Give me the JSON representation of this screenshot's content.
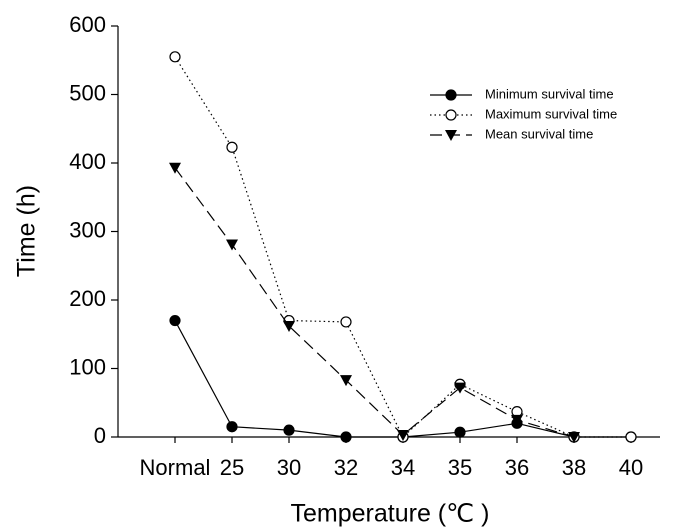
{
  "chart_data": {
    "type": "line",
    "x_label": "Temperature (℃ )",
    "y_label": "Time (h)",
    "categories": [
      "Normal",
      "25",
      "30",
      "32",
      "34",
      "35",
      "36",
      "38",
      "40"
    ],
    "series": [
      {
        "name": "Minimum survival time",
        "color": "#000000",
        "linestyle": "solid",
        "marker": "circle-filled",
        "values": [
          170,
          15,
          10,
          0,
          0,
          7,
          20,
          0,
          0
        ]
      },
      {
        "name": "Maximum survival time",
        "color": "#000000",
        "linestyle": "dotted",
        "marker": "circle-open",
        "values": [
          555,
          423,
          170,
          168,
          0,
          77,
          37,
          0,
          0
        ]
      },
      {
        "name": "Mean survival time",
        "color": "#000000",
        "linestyle": "dashed",
        "marker": "triangle-down",
        "values": [
          393,
          281,
          162,
          83,
          3,
          72,
          25,
          0,
          null
        ]
      }
    ],
    "ylim": [
      0,
      600
    ],
    "yticks": [
      0,
      100,
      200,
      300,
      400,
      500,
      600
    ],
    "legend": "upper right"
  }
}
